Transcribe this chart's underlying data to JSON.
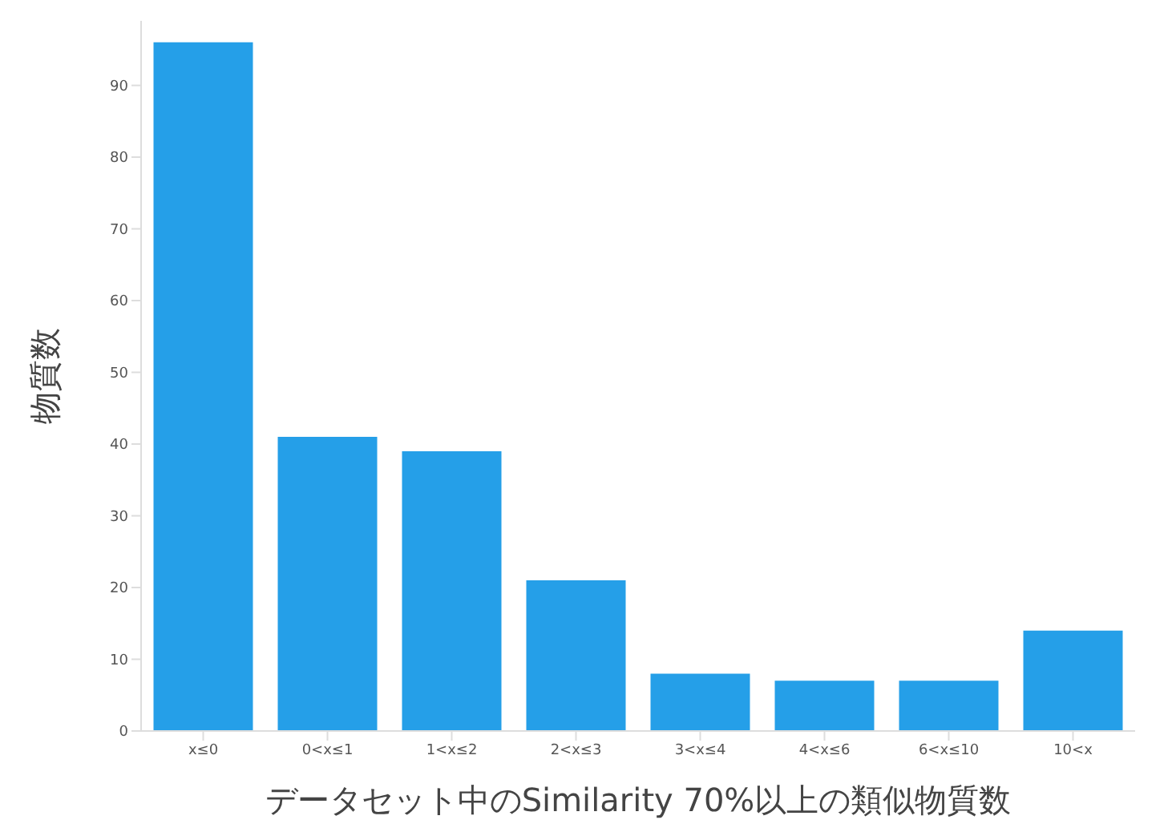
{
  "chart_data": {
    "type": "bar",
    "xlabel": "データセット中のSimilarity 70%以上の類似物質数",
    "ylabel": "物質数",
    "categories": [
      "x≤0",
      "0<x≤1",
      "1<x≤2",
      "2<x≤3",
      "3<x≤4",
      "4<x≤6",
      "6<x≤10",
      "10<x"
    ],
    "values": [
      96,
      41,
      39,
      21,
      8,
      7,
      7,
      14
    ],
    "color": "#259fe8",
    "ylim": [
      0,
      99
    ],
    "yticks": [
      0,
      10,
      20,
      30,
      40,
      50,
      60,
      70,
      80,
      90
    ],
    "grid": false,
    "legend": false
  }
}
